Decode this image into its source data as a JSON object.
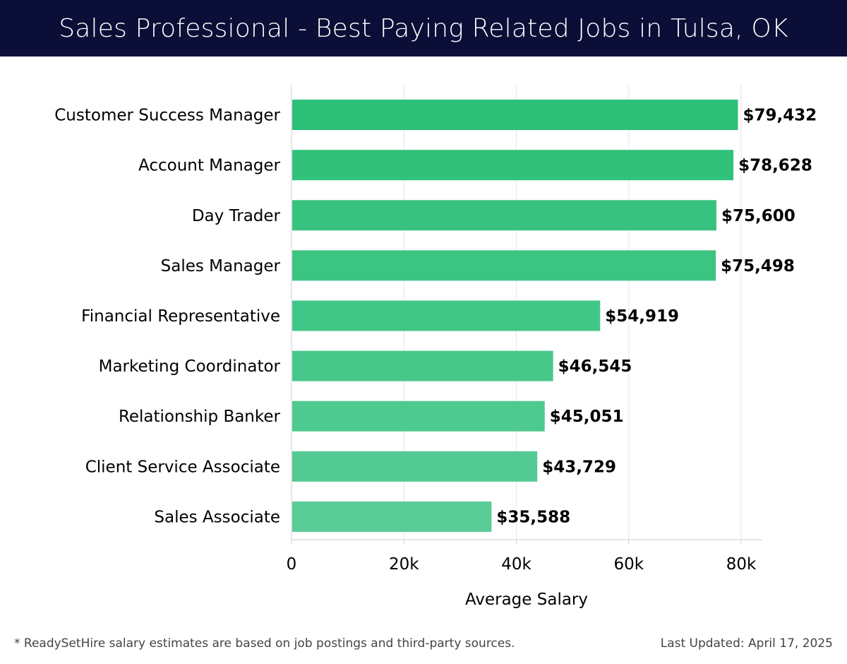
{
  "page": {
    "title": "Sales Professional - Best Paying Related Jobs in Tulsa, OK",
    "footnote": "* ReadySetHire salary estimates are based on job postings and third-party sources.",
    "last_updated": "Last Updated: April 17, 2025"
  },
  "chart_data": {
    "type": "bar",
    "orientation": "horizontal",
    "title": "Sales Professional - Best Paying Related Jobs in Tulsa, OK",
    "xlabel": "Average Salary",
    "ylabel": "",
    "categories": [
      "Customer Success Manager",
      "Account Manager",
      "Day Trader",
      "Sales Manager",
      "Financial Representative",
      "Marketing Coordinator",
      "Relationship Banker",
      "Client Service Associate",
      "Sales Associate"
    ],
    "values": [
      79432,
      78628,
      75600,
      75498,
      54919,
      46545,
      45051,
      43729,
      35588
    ],
    "data_labels": [
      "$79,432",
      "$78,628",
      "$75,600",
      "$75,498",
      "$54,919",
      "$46,545",
      "$45,051",
      "$43,729",
      "$35,588"
    ],
    "xlim": [
      0,
      83500
    ],
    "xticks": [
      0,
      20000,
      40000,
      60000,
      80000
    ],
    "xtick_labels": [
      "0",
      "20k",
      "40k",
      "60k",
      "80k"
    ],
    "grid": "vertical",
    "legend": "none",
    "colors": {
      "bar_top": "#2bbf77",
      "bar_bottom": "#59cc97",
      "grid": "#e6e6e6",
      "axis": "#cccccc"
    }
  }
}
